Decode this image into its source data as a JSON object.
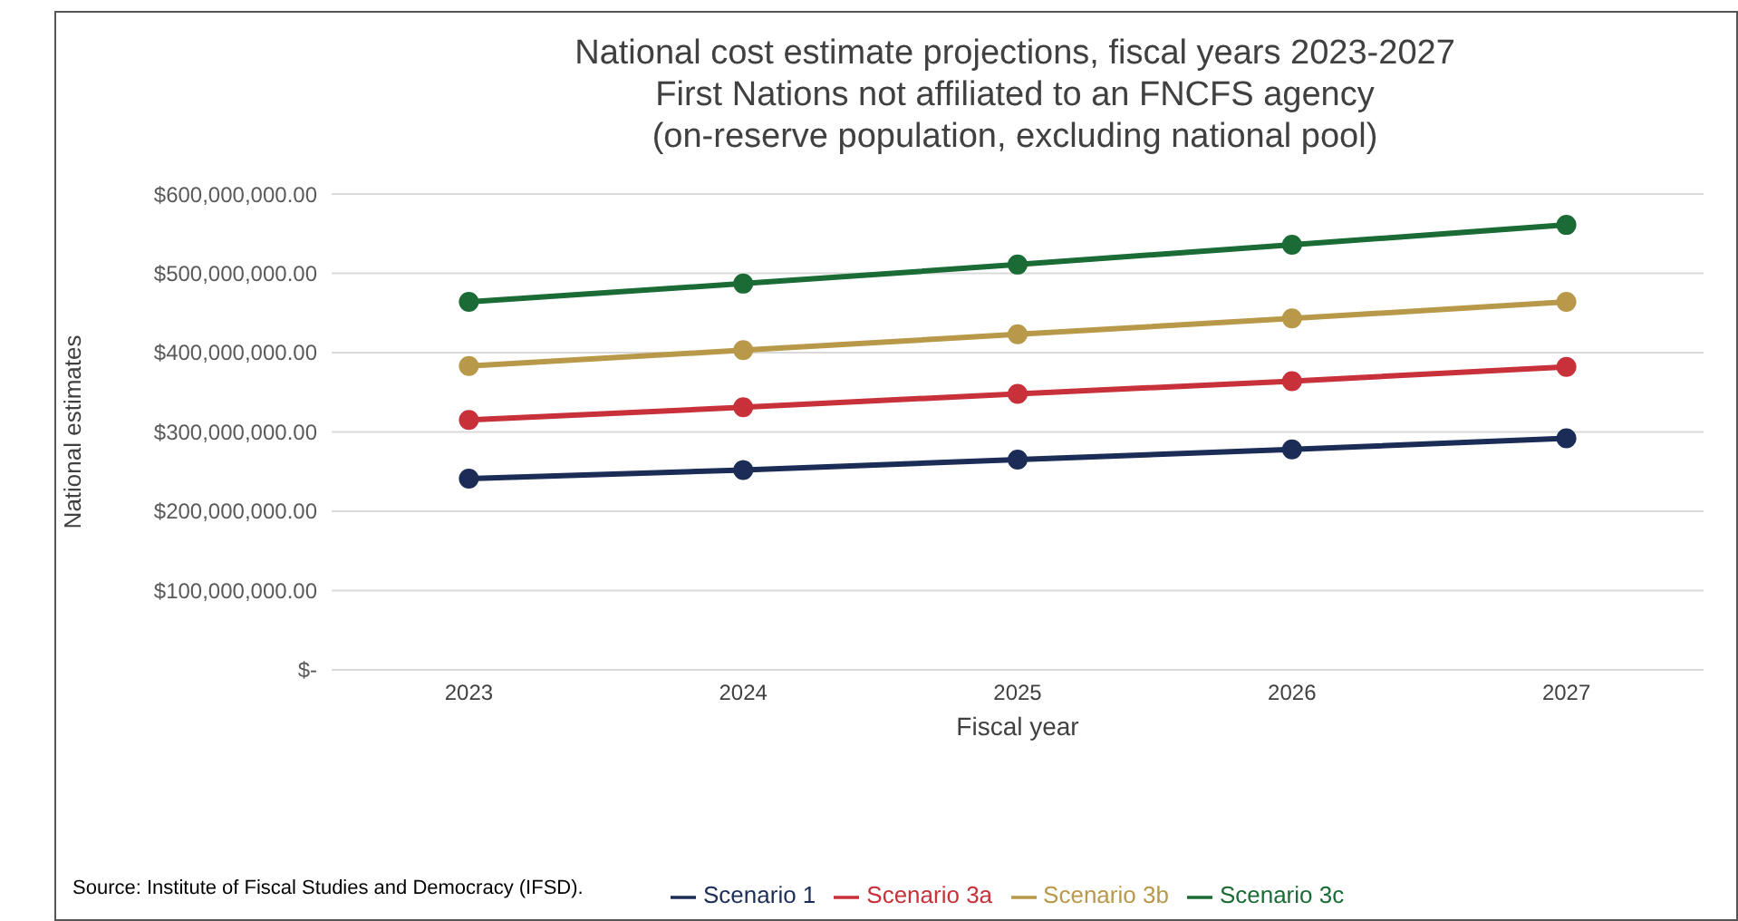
{
  "chart_data": {
    "type": "line",
    "title": "National cost estimate projections, fiscal years 2023-2027",
    "subtitle": "First Nations not affiliated to an FNCFS agency\n(on-reserve population, excluding national pool)",
    "xlabel": "Fiscal year",
    "ylabel": "National estimates",
    "annotations": [
      "Source: Institute of Fiscal Studies and Democracy (IFSD)."
    ],
    "categories": [
      "2023",
      "2024",
      "2025",
      "2026",
      "2027"
    ],
    "series": [
      {
        "name": "Scenario 1",
        "color": "#1b2d57",
        "values": [
          241000000,
          252000000,
          265000000,
          278000000,
          292000000
        ]
      },
      {
        "name": "Scenario 3a",
        "color": "#c8303a",
        "values": [
          315000000,
          331000000,
          348000000,
          364000000,
          382000000
        ]
      },
      {
        "name": "Scenario 3b",
        "color": "#b8994a",
        "values": [
          383000000,
          403000000,
          423000000,
          443000000,
          464000000
        ]
      },
      {
        "name": "Scenario 3c",
        "color": "#1a6b35",
        "values": [
          464000000,
          487000000,
          511000000,
          536000000,
          561000000
        ]
      }
    ],
    "ylim": [
      0,
      600000000
    ],
    "yticks": [
      {
        "value": 0,
        "label": "$-"
      },
      {
        "value": 100000000,
        "label": "$100,000,000.00"
      },
      {
        "value": 200000000,
        "label": "$200,000,000.00"
      },
      {
        "value": 300000000,
        "label": "$300,000,000.00"
      },
      {
        "value": 400000000,
        "label": "$400,000,000.00"
      },
      {
        "value": 500000000,
        "label": "$500,000,000.00"
      },
      {
        "value": 600000000,
        "label": "$600,000,000.00"
      }
    ],
    "grid": "y",
    "legend": "bottom",
    "marker": "circle",
    "line_style": "solid"
  }
}
